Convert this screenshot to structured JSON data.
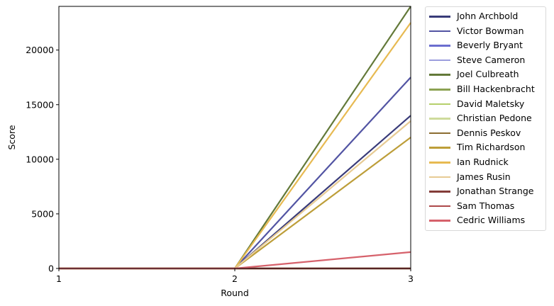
{
  "chart_data": {
    "type": "line",
    "title": "",
    "xlabel": "Round",
    "ylabel": "Score",
    "x": [
      1,
      2,
      3
    ],
    "xticks": [
      "1",
      "2",
      "3"
    ],
    "yticks": [
      "0",
      "5000",
      "10000",
      "15000",
      "20000"
    ],
    "xlim": [
      1,
      3
    ],
    "ylim": [
      0,
      24000
    ],
    "grid": false,
    "legend_position": "outside upper right",
    "series": [
      {
        "name": "John Archbold",
        "color": "#393b79",
        "values": [
          0,
          0,
          14000
        ]
      },
      {
        "name": "Victor Bowman",
        "color": "#5254a3",
        "values": [
          0,
          0,
          17500
        ]
      },
      {
        "name": "Beverly Bryant",
        "color": "#6b6ecf",
        "values": [
          0,
          0,
          0
        ]
      },
      {
        "name": "Steve Cameron",
        "color": "#9c9ede",
        "values": [
          0,
          0,
          0
        ]
      },
      {
        "name": "Joel Culbreath",
        "color": "#637939",
        "values": [
          0,
          0,
          24000
        ]
      },
      {
        "name": "Bill Hackenbracht",
        "color": "#8ca252",
        "values": [
          0,
          0,
          0
        ]
      },
      {
        "name": "David Maletsky",
        "color": "#b5cf6b",
        "values": [
          0,
          0,
          0
        ]
      },
      {
        "name": "Christian Pedone",
        "color": "#cedb9c",
        "values": [
          0,
          0,
          0
        ]
      },
      {
        "name": "Dennis Peskov",
        "color": "#8c6d31",
        "values": [
          0,
          0,
          0
        ]
      },
      {
        "name": "Tim Richardson",
        "color": "#bd9e39",
        "values": [
          0,
          0,
          12000
        ]
      },
      {
        "name": "Ian Rudnick",
        "color": "#e7ba52",
        "values": [
          0,
          0,
          22500
        ]
      },
      {
        "name": "James Rusin",
        "color": "#e7cb94",
        "values": [
          0,
          0,
          13500
        ]
      },
      {
        "name": "Jonathan Strange",
        "color": "#843c39",
        "values": [
          0,
          0,
          0
        ]
      },
      {
        "name": "Sam Thomas",
        "color": "#ad494a",
        "values": [
          0,
          0,
          0
        ]
      },
      {
        "name": "Cedric Williams",
        "color": "#d6616b",
        "values": [
          0,
          0,
          1500
        ]
      }
    ]
  }
}
